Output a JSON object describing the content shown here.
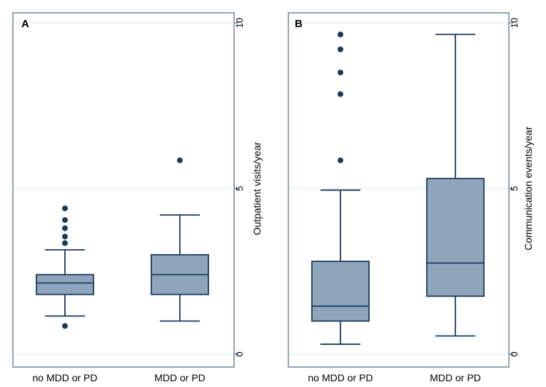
{
  "colors": {
    "box_fill": "#8fa5bb",
    "box_stroke": "#1a3a5c",
    "outlier": "#1a3a5c",
    "gridline": "#d8e8e4",
    "frame": "#2b4a66"
  },
  "chart_data": [
    {
      "panel_label": "A",
      "type": "box",
      "ylabel": "Outpatient visits/year",
      "ylim": [
        0,
        10
      ],
      "yticks": [
        0,
        5,
        10
      ],
      "grid": true,
      "categories": [
        "no MDD or PD",
        "MDD or PD"
      ],
      "boxes": [
        {
          "category": "no MDD or PD",
          "whisker_low": 1.15,
          "q1": 1.8,
          "median": 2.15,
          "q3": 2.4,
          "whisker_high": 3.15,
          "outliers": [
            0.85,
            3.35,
            3.55,
            3.8,
            4.05,
            4.4
          ]
        },
        {
          "category": "MDD or PD",
          "whisker_low": 1.0,
          "q1": 1.8,
          "median": 2.4,
          "q3": 3.0,
          "whisker_high": 4.2,
          "outliers": [
            5.85
          ]
        }
      ]
    },
    {
      "panel_label": "B",
      "type": "box",
      "ylabel": "Communication events/year",
      "ylim": [
        0,
        10
      ],
      "yticks": [
        0,
        5,
        10
      ],
      "grid": true,
      "categories": [
        "no MDD or PD",
        "MDD or PD"
      ],
      "boxes": [
        {
          "category": "no MDD or PD",
          "whisker_low": 0.3,
          "q1": 1.0,
          "median": 1.45,
          "q3": 2.8,
          "whisker_high": 4.95,
          "outliers": [
            5.85,
            7.85,
            8.5,
            9.2,
            9.65
          ]
        },
        {
          "category": "MDD or PD",
          "whisker_low": 0.55,
          "q1": 1.75,
          "median": 2.75,
          "q3": 5.3,
          "whisker_high": 9.65,
          "outliers": []
        }
      ]
    }
  ]
}
